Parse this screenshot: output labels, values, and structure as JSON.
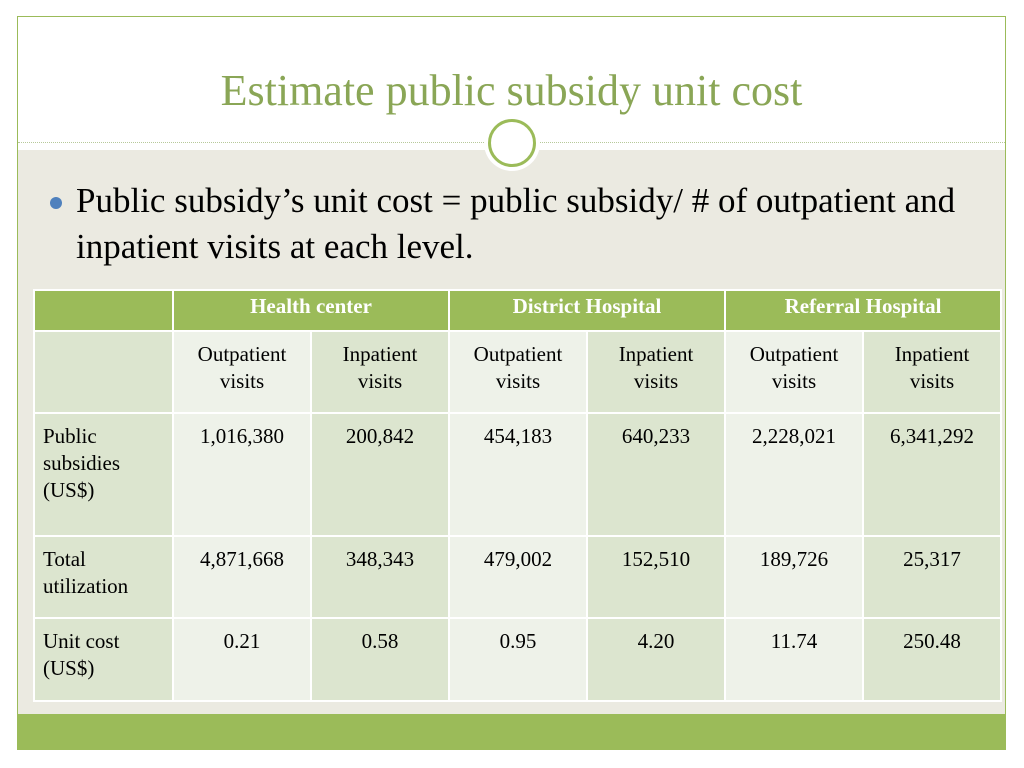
{
  "slide": {
    "title": "Estimate public subsidy unit cost",
    "bullet": "Public subsidy’s unit cost = public subsidy/ # of outpatient and inpatient visits at each level."
  },
  "table": {
    "groups": [
      "Health center",
      "District Hospital",
      "Referral Hospital"
    ],
    "subheaders": [
      "Outpatient visits",
      "Inpatient visits",
      "Outpatient visits",
      "Inpatient visits",
      "Outpatient visits",
      "Inpatient visits"
    ],
    "rows": [
      {
        "label": "Public subsidies (US$)",
        "values": [
          "1,016,380",
          "200,842",
          "454,183",
          "640,233",
          "2,228,021",
          "6,341,292"
        ]
      },
      {
        "label": "Total utilization",
        "values": [
          "4,871,668",
          "348,343",
          "479,002",
          "152,510",
          "189,726",
          "25,317"
        ]
      },
      {
        "label": "Unit cost (US$)",
        "values": [
          "0.21",
          "0.58",
          "0.95",
          "4.20",
          "11.74",
          "250.48"
        ]
      }
    ]
  },
  "colors": {
    "accent": "#9bbb59",
    "title": "#8aa656",
    "content_bg": "#ebeae1",
    "bullet": "#4f81bd",
    "cell_dark": "#dce5cf",
    "cell_light": "#eef2e9"
  }
}
